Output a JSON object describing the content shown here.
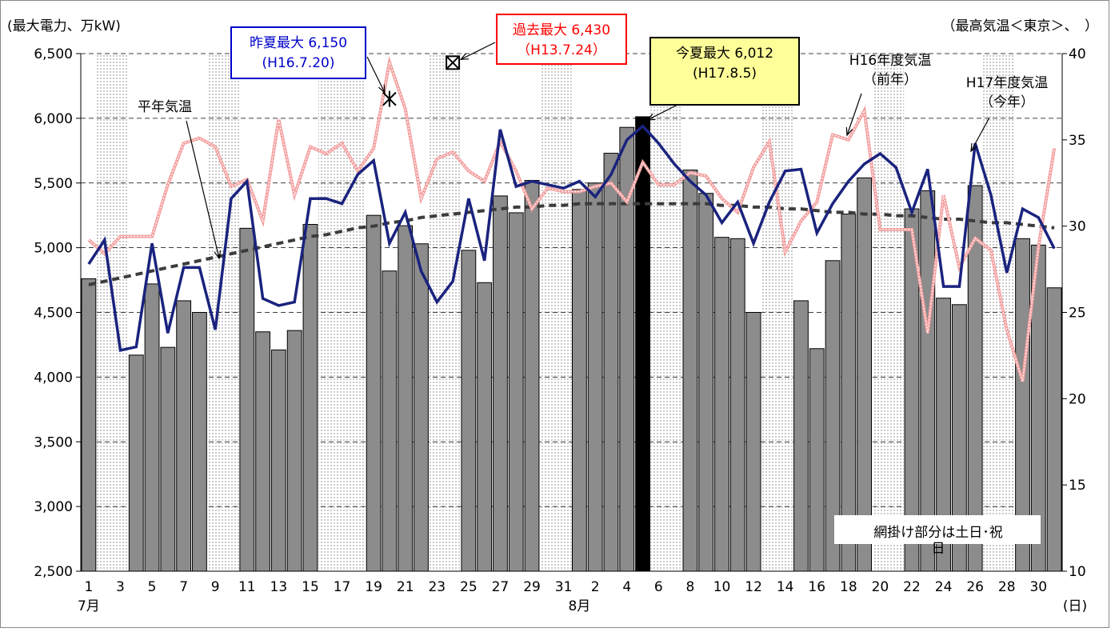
{
  "chart_data": {
    "type": "bar",
    "title": "",
    "ylabel_left": "(最大電力、万kW)",
    "ylabel_right": "（最高気温＜東京＞、　）",
    "left_axis": {
      "ylim": [
        2500,
        6500
      ],
      "ticks": [
        "2,500",
        "3,000",
        "3,500",
        "4,000",
        "4,500",
        "5,000",
        "5,500",
        "6,000",
        "6,500"
      ]
    },
    "right_axis": {
      "ylim": [
        10,
        40
      ],
      "ticks": [
        "10",
        "15",
        "20",
        "25",
        "30",
        "35",
        "40"
      ]
    },
    "x_tick_labels": [
      "1",
      "3",
      "5",
      "7",
      "9",
      "11",
      "13",
      "15",
      "17",
      "19",
      "21",
      "23",
      "25",
      "27",
      "29",
      "31",
      "2",
      "4",
      "6",
      "8",
      "10",
      "12",
      "14",
      "16",
      "18",
      "20",
      "22",
      "24",
      "26",
      "28",
      "30"
    ],
    "month_labels": [
      "7月",
      "8月"
    ],
    "x_unit": "(日)",
    "days": [
      "7/1",
      "7/2",
      "7/3",
      "7/4",
      "7/5",
      "7/6",
      "7/7",
      "7/8",
      "7/9",
      "7/10",
      "7/11",
      "7/12",
      "7/13",
      "7/14",
      "7/15",
      "7/16",
      "7/17",
      "7/18",
      "7/19",
      "7/20",
      "7/21",
      "7/22",
      "7/23",
      "7/24",
      "7/25",
      "7/26",
      "7/27",
      "7/28",
      "7/29",
      "7/30",
      "7/31",
      "8/1",
      "8/2",
      "8/3",
      "8/4",
      "8/5",
      "8/6",
      "8/7",
      "8/8",
      "8/9",
      "8/10",
      "8/11",
      "8/12",
      "8/13",
      "8/14",
      "8/15",
      "8/16",
      "8/17",
      "8/18",
      "8/19",
      "8/20",
      "8/21",
      "8/22",
      "8/23",
      "8/24",
      "8/25",
      "8/26",
      "8/27",
      "8/28",
      "8/29",
      "8/30",
      "8/31"
    ],
    "hatched_days": [
      "7/2",
      "7/3",
      "7/9",
      "7/10",
      "7/16",
      "7/17",
      "7/18",
      "7/23",
      "7/24",
      "7/30",
      "7/31",
      "8/6",
      "8/7",
      "8/13",
      "8/14",
      "8/20",
      "8/21",
      "8/27",
      "8/28"
    ],
    "series": [
      {
        "name": "最大電力",
        "kind": "bar",
        "axis": "left",
        "color": "#8c8c8c",
        "highlight_color": "#000000",
        "highlight_day": "8/5",
        "values": [
          4760,
          null,
          null,
          4170,
          4720,
          4230,
          4590,
          4500,
          null,
          null,
          5150,
          4350,
          4210,
          4360,
          5180,
          null,
          null,
          null,
          5250,
          4820,
          5170,
          5030,
          null,
          null,
          4980,
          4730,
          5400,
          5270,
          5520,
          null,
          null,
          5450,
          5500,
          5730,
          5930,
          6012,
          null,
          null,
          5600,
          5420,
          5080,
          5070,
          4500,
          null,
          null,
          4590,
          4220,
          4900,
          5260,
          5540,
          null,
          null,
          5300,
          5440,
          4610,
          4560,
          5480,
          null,
          null,
          5070,
          5020,
          4690
        ]
      },
      {
        "name": "H17年度気温（今年）",
        "kind": "line",
        "axis": "right",
        "color": "#1a237e",
        "values": [
          27.8,
          29.2,
          22.8,
          23.0,
          29.0,
          23.8,
          27.6,
          27.6,
          24.0,
          31.6,
          32.6,
          25.8,
          25.4,
          25.6,
          31.6,
          31.6,
          31.3,
          33.0,
          33.8,
          29.0,
          30.8,
          27.4,
          25.6,
          26.8,
          31.6,
          28.0,
          35.6,
          32.3,
          32.6,
          32.4,
          32.2,
          32.6,
          31.7,
          33.0,
          35.0,
          35.8,
          34.8,
          33.6,
          32.6,
          31.8,
          30.2,
          31.4,
          29.0,
          31.4,
          33.2,
          33.3,
          29.6,
          31.3,
          32.6,
          33.6,
          34.2,
          33.4,
          30.8,
          33.3,
          26.5,
          26.5,
          34.8,
          31.8,
          27.3,
          31.0,
          30.5,
          28.7
        ]
      },
      {
        "name": "H16年度気温（前年）",
        "kind": "line",
        "axis": "right",
        "color": "#f4a0a0",
        "values": [
          29.2,
          28.4,
          29.4,
          29.4,
          29.4,
          32.4,
          34.8,
          35.1,
          34.6,
          32.3,
          32.7,
          30.3,
          36.2,
          31.8,
          34.6,
          34.2,
          34.8,
          33.2,
          34.5,
          39.5,
          36.8,
          31.6,
          33.9,
          34.3,
          33.2,
          32.6,
          34.9,
          33.2,
          31.0,
          32.2,
          32.0,
          32.0,
          32.3,
          32.5,
          31.4,
          33.7,
          32.4,
          32.4,
          33.1,
          32.9,
          31.6,
          30.8,
          33.4,
          34.9,
          28.5,
          30.3,
          31.4,
          35.3,
          35.0,
          36.7,
          29.8,
          29.8,
          29.8,
          23.8,
          31.8,
          27.6,
          29.3,
          28.6,
          24.0,
          21.0,
          28.8,
          34.5
        ]
      },
      {
        "name": "平年気温",
        "kind": "line",
        "axis": "right",
        "color": "#3c3c3c",
        "values": [
          26.6,
          26.8,
          27.0,
          27.2,
          27.4,
          27.6,
          27.8,
          28.0,
          28.2,
          28.4,
          28.6,
          28.8,
          29.0,
          29.2,
          29.4,
          29.5,
          29.7,
          29.9,
          30.0,
          30.2,
          30.3,
          30.5,
          30.6,
          30.7,
          30.8,
          30.9,
          31.0,
          31.1,
          31.1,
          31.2,
          31.2,
          31.3,
          31.3,
          31.3,
          31.3,
          31.3,
          31.3,
          31.3,
          31.3,
          31.3,
          31.2,
          31.2,
          31.1,
          31.1,
          31.0,
          31.0,
          30.9,
          30.8,
          30.8,
          30.7,
          30.7,
          30.6,
          30.6,
          30.5,
          30.4,
          30.4,
          30.3,
          30.2,
          30.2,
          30.1,
          30.0,
          29.9
        ]
      }
    ],
    "grid": true,
    "legend": "none",
    "annotations": [
      {
        "kind": "callout",
        "lines": [
          "昨夏最大 6,150",
          "(H16.7.20)"
        ],
        "border": "#0000cc",
        "text": "#0000cc",
        "fill": "#ffffff",
        "point_day": "7/20",
        "point_value": 6150
      },
      {
        "kind": "callout",
        "lines": [
          "過去最大 6,430",
          "（H13.7.24）"
        ],
        "border": "#ff0000",
        "text": "#ff0000",
        "fill": "#ffffff",
        "point_day": "7/24",
        "point_value": 6430
      },
      {
        "kind": "callout",
        "lines": [
          "今夏最大 6,012",
          "(H17.8.5)"
        ],
        "border": "#000000",
        "text": "#000000",
        "fill": "#ffff99",
        "point_day": "8/5",
        "point_value": 6012
      },
      {
        "kind": "label",
        "lines": [
          "平年気温"
        ]
      },
      {
        "kind": "label",
        "lines": [
          "H16年度気温",
          "（前年）"
        ]
      },
      {
        "kind": "label",
        "lines": [
          "H17年度気温",
          "（今年）"
        ]
      },
      {
        "kind": "note",
        "lines": [
          "網掛け部分は土日･祝",
          "日"
        ]
      }
    ]
  }
}
